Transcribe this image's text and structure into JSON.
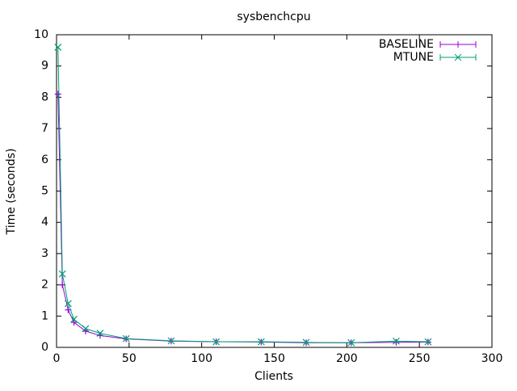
{
  "chart_data": {
    "type": "line",
    "title": "sysbenchcpu",
    "x_label": "Clients",
    "y_label": "Time (seconds)",
    "x": [
      1,
      4,
      8,
      12,
      20,
      30,
      48,
      79,
      110,
      141,
      172,
      203,
      234,
      256
    ],
    "series": [
      {
        "name": "BASELINE",
        "color": "#9400d3",
        "marker": "plus",
        "values": [
          8.1,
          2.0,
          1.2,
          0.8,
          0.52,
          0.38,
          0.27,
          0.2,
          0.18,
          0.17,
          0.15,
          0.15,
          0.16,
          0.17
        ]
      },
      {
        "name": "MTUNE",
        "color": "#009e73",
        "marker": "x",
        "values": [
          9.6,
          2.35,
          1.4,
          0.9,
          0.6,
          0.45,
          0.28,
          0.21,
          0.18,
          0.18,
          0.16,
          0.15,
          0.2,
          0.18
        ]
      }
    ],
    "xlim": [
      0,
      300
    ],
    "ylim": [
      0,
      10
    ],
    "xticks": [
      0,
      50,
      100,
      150,
      200,
      250,
      300
    ],
    "yticks": [
      0,
      1,
      2,
      3,
      4,
      5,
      6,
      7,
      8,
      9,
      10
    ],
    "legend": "top-right"
  }
}
